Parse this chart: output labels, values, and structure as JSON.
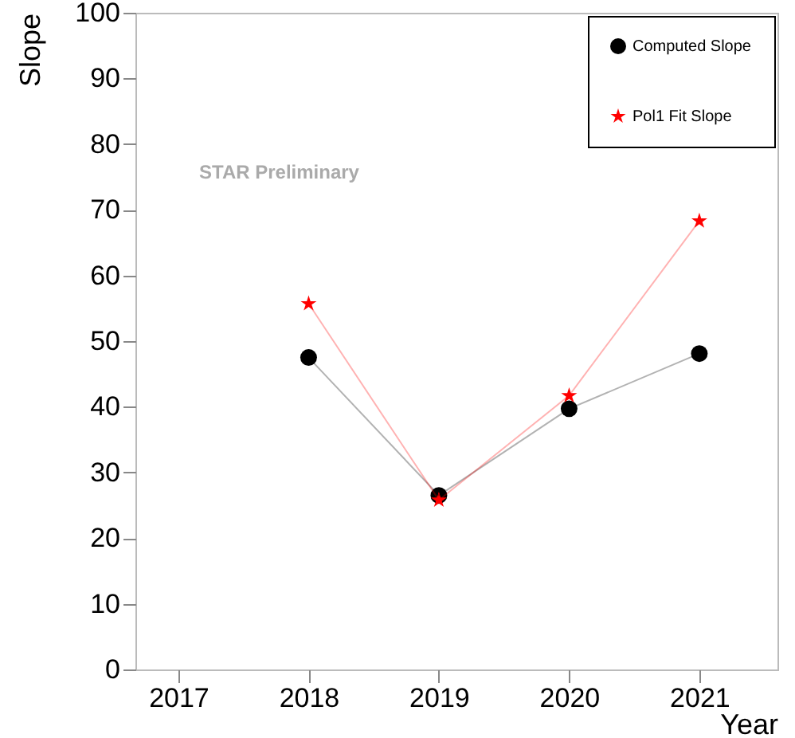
{
  "chart_data": {
    "type": "line",
    "xlabel": "Year",
    "ylabel": "Slope",
    "annotations": [
      "STAR Preliminary"
    ],
    "x": [
      2018,
      2019,
      2020,
      2021
    ],
    "series": [
      {
        "name": "Computed Slope",
        "color": "#000000",
        "marker": "circle",
        "values": [
          47.5,
          26.5,
          39.7,
          48.1
        ]
      },
      {
        "name": "Pol1 Fit Slope",
        "color": "#ff0000",
        "marker": "star",
        "values": [
          55.7,
          25.8,
          41.7,
          68.3
        ]
      }
    ],
    "xlim": [
      2016.67,
      2021.6
    ],
    "xticks": [
      2017,
      2018,
      2019,
      2020,
      2021
    ],
    "ylim": [
      0,
      100
    ],
    "yticks": [
      0,
      10,
      20,
      30,
      40,
      50,
      60,
      70,
      80,
      90,
      100
    ],
    "grid": false,
    "legend": "top right"
  }
}
